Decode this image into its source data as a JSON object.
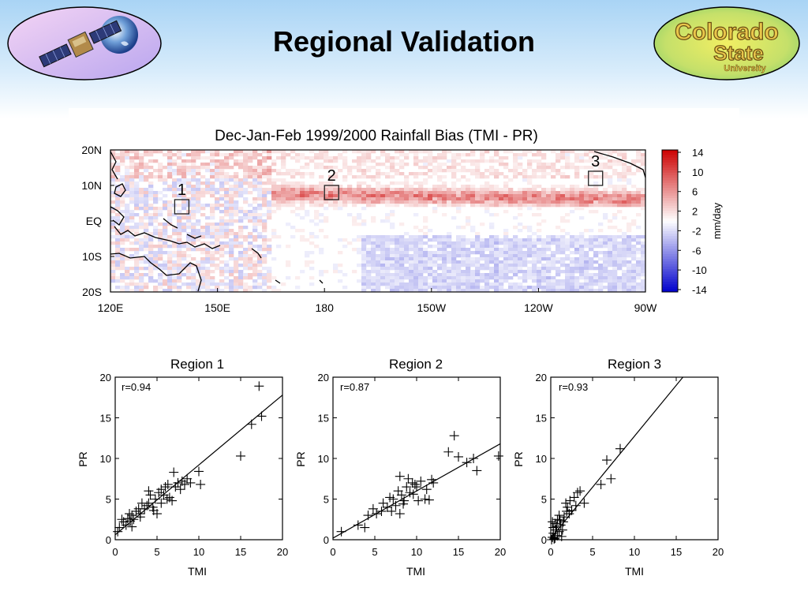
{
  "slide": {
    "title": "Regional Validation"
  },
  "logos": {
    "left": {
      "icon": "satellite-earth-icon"
    },
    "right": {
      "icon": "university-logo-icon",
      "line1": "Colorado",
      "line2": "State",
      "line3": "University"
    }
  },
  "chart_data": [
    {
      "type": "heatmap",
      "title": "Dec-Jan-Feb 1999/2000 Rainfall Bias (TMI - PR)",
      "xlabel": "",
      "ylabel": "",
      "x_ticks": [
        "120E",
        "150E",
        "180",
        "150W",
        "120W",
        "90W"
      ],
      "x_range_lon": [
        120,
        270
      ],
      "y_ticks": [
        "20N",
        "10N",
        "EQ",
        "10S",
        "20S"
      ],
      "y_range_lat": [
        20,
        -20
      ],
      "colorbar": {
        "label": "mm/day",
        "ticks": [
          "14",
          "10",
          "6",
          "2",
          "-2",
          "-6",
          "-10",
          "-14"
        ],
        "range": [
          -14,
          14
        ],
        "colors": {
          "pos_max": "#cc0000",
          "neg_max": "#0000cc",
          "zero": "#ffffff"
        }
      },
      "regions": [
        {
          "label": "1",
          "lon": 140,
          "lat": 4
        },
        {
          "label": "2",
          "lon": 182,
          "lat": 8
        },
        {
          "label": "3",
          "lon": 256,
          "lat": 12
        }
      ]
    },
    {
      "type": "scatter",
      "title": "Region 1",
      "xlabel": "TMI",
      "ylabel": "PR",
      "xlim": [
        0,
        20
      ],
      "ylim": [
        0,
        20
      ],
      "x_ticks": [
        0,
        5,
        10,
        15,
        20
      ],
      "y_ticks": [
        0,
        5,
        10,
        15,
        20
      ],
      "annotation": "r=0.94",
      "fit_line": {
        "x": [
          0,
          20
        ],
        "y": [
          0.6,
          17.8
        ]
      },
      "points": [
        [
          0.3,
          1.0
        ],
        [
          0.5,
          1.5
        ],
        [
          0.8,
          2.5
        ],
        [
          1.0,
          2.2
        ],
        [
          1.3,
          1.8
        ],
        [
          1.5,
          2.6
        ],
        [
          1.7,
          3.2
        ],
        [
          1.8,
          2.3
        ],
        [
          2.0,
          3.0
        ],
        [
          2.2,
          2.5
        ],
        [
          2.5,
          3.5
        ],
        [
          2.8,
          3.8
        ],
        [
          3.0,
          3.2
        ],
        [
          3.2,
          4.5
        ],
        [
          3.5,
          3.8
        ],
        [
          3.8,
          4.2
        ],
        [
          4.0,
          4.5
        ],
        [
          4.2,
          5.5
        ],
        [
          4.5,
          4.0
        ],
        [
          4.8,
          5.0
        ],
        [
          5.0,
          3.2
        ],
        [
          5.2,
          5.8
        ],
        [
          5.5,
          6.2
        ],
        [
          5.8,
          5.5
        ],
        [
          6.0,
          6.5
        ],
        [
          6.3,
          6.8
        ],
        [
          6.5,
          5.2
        ],
        [
          6.8,
          4.8
        ],
        [
          7.0,
          8.3
        ],
        [
          7.2,
          6.5
        ],
        [
          7.5,
          7.0
        ],
        [
          7.8,
          6.2
        ],
        [
          8.0,
          7.2
        ],
        [
          8.3,
          6.8
        ],
        [
          8.6,
          7.5
        ],
        [
          9.0,
          7.0
        ],
        [
          10.0,
          8.4
        ],
        [
          10.2,
          6.8
        ],
        [
          15.0,
          10.3
        ],
        [
          16.3,
          14.2
        ],
        [
          17.2,
          18.9
        ],
        [
          17.5,
          15.2
        ],
        [
          4.0,
          6.0
        ],
        [
          3.0,
          2.8
        ],
        [
          2.0,
          1.6
        ],
        [
          6.2,
          5.0
        ],
        [
          5.5,
          4.5
        ],
        [
          4.6,
          3.6
        ]
      ]
    },
    {
      "type": "scatter",
      "title": "Region 2",
      "xlabel": "TMI",
      "ylabel": "PR",
      "xlim": [
        0,
        20
      ],
      "ylim": [
        0,
        20
      ],
      "x_ticks": [
        0,
        5,
        10,
        15,
        20
      ],
      "y_ticks": [
        0,
        5,
        10,
        15,
        20
      ],
      "annotation": "r=0.87",
      "fit_line": {
        "x": [
          0,
          20
        ],
        "y": [
          0.2,
          11.8
        ]
      },
      "points": [
        [
          1.0,
          1.0
        ],
        [
          3.0,
          1.8
        ],
        [
          3.8,
          1.5
        ],
        [
          4.2,
          3.0
        ],
        [
          4.8,
          3.8
        ],
        [
          5.2,
          3.2
        ],
        [
          5.8,
          3.5
        ],
        [
          6.0,
          4.5
        ],
        [
          6.5,
          4.0
        ],
        [
          7.0,
          3.5
        ],
        [
          7.2,
          5.0
        ],
        [
          7.5,
          4.2
        ],
        [
          7.8,
          6.0
        ],
        [
          8.0,
          3.2
        ],
        [
          8.2,
          5.5
        ],
        [
          8.5,
          4.8
        ],
        [
          8.8,
          6.5
        ],
        [
          9.0,
          7.5
        ],
        [
          9.2,
          5.8
        ],
        [
          9.5,
          7.0
        ],
        [
          9.8,
          6.8
        ],
        [
          10.0,
          6.5
        ],
        [
          10.2,
          4.8
        ],
        [
          10.5,
          7.2
        ],
        [
          11.0,
          5.0
        ],
        [
          11.2,
          6.2
        ],
        [
          11.5,
          4.9
        ],
        [
          12.0,
          7.0
        ],
        [
          13.8,
          10.8
        ],
        [
          14.5,
          12.8
        ],
        [
          15.0,
          10.2
        ],
        [
          16.0,
          9.5
        ],
        [
          16.8,
          10.0
        ],
        [
          17.2,
          8.5
        ],
        [
          19.8,
          10.3
        ],
        [
          8.0,
          7.8
        ],
        [
          8.4,
          4.4
        ],
        [
          6.8,
          5.2
        ],
        [
          9.6,
          5.6
        ],
        [
          11.8,
          7.4
        ]
      ]
    },
    {
      "type": "scatter",
      "title": "Region 3",
      "xlabel": "TMI",
      "ylabel": "PR",
      "xlim": [
        0,
        20
      ],
      "ylim": [
        0,
        20
      ],
      "x_ticks": [
        0,
        5,
        10,
        15,
        20
      ],
      "y_ticks": [
        0,
        5,
        10,
        15,
        20
      ],
      "annotation": "r=0.93",
      "fit_line": {
        "x": [
          0,
          15.8
        ],
        "y": [
          0.2,
          20
        ]
      },
      "points": [
        [
          0.1,
          0.0
        ],
        [
          0.2,
          0.3
        ],
        [
          0.3,
          0.8
        ],
        [
          0.3,
          1.5
        ],
        [
          0.5,
          0.2
        ],
        [
          0.5,
          2.0
        ],
        [
          0.6,
          1.2
        ],
        [
          0.8,
          0.5
        ],
        [
          0.8,
          2.5
        ],
        [
          1.0,
          1.0
        ],
        [
          1.0,
          3.0
        ],
        [
          1.2,
          1.8
        ],
        [
          1.3,
          0.4
        ],
        [
          1.5,
          2.2
        ],
        [
          1.6,
          2.8
        ],
        [
          1.8,
          4.5
        ],
        [
          1.9,
          3.5
        ],
        [
          2.0,
          4.0
        ],
        [
          2.2,
          3.2
        ],
        [
          2.3,
          4.8
        ],
        [
          2.5,
          3.6
        ],
        [
          2.8,
          5.2
        ],
        [
          3.0,
          4.2
        ],
        [
          3.2,
          5.8
        ],
        [
          3.5,
          6.0
        ],
        [
          4.0,
          4.5
        ],
        [
          6.0,
          6.8
        ],
        [
          6.7,
          9.8
        ],
        [
          7.2,
          7.5
        ],
        [
          8.3,
          11.2
        ],
        [
          0.4,
          0.1
        ],
        [
          0.7,
          1.6
        ],
        [
          1.1,
          2.4
        ],
        [
          0.2,
          2.2
        ],
        [
          1.4,
          1.2
        ]
      ]
    }
  ]
}
